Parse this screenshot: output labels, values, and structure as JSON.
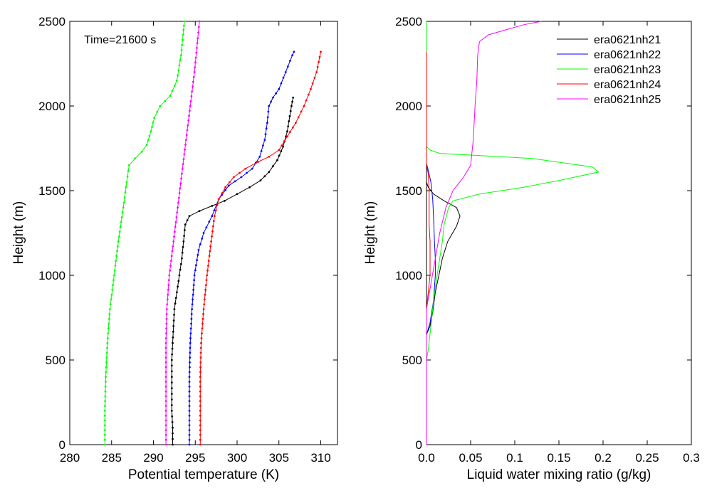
{
  "chart_data": [
    {
      "type": "line",
      "xlabel": "Potential temperature (K)",
      "ylabel": "Height (m)",
      "xlim": [
        280,
        312
      ],
      "ylim": [
        0,
        2500
      ],
      "xticks": [
        "280",
        "285",
        "290",
        "295",
        "300",
        "305",
        "310"
      ],
      "yticks": [
        "0",
        "500",
        "1000",
        "1500",
        "2000",
        "2500"
      ],
      "annotation": "Time=21600 s",
      "markers": true,
      "grid": false,
      "series": [
        {
          "color": "#000000",
          "points": [
            [
              292.3,
              0
            ],
            [
              292.3,
              100
            ],
            [
              292.2,
              200
            ],
            [
              292.2,
              300
            ],
            [
              292.2,
              400
            ],
            [
              292.2,
              500
            ],
            [
              292.3,
              600
            ],
            [
              292.4,
              700
            ],
            [
              292.5,
              800
            ],
            [
              292.8,
              900
            ],
            [
              293.1,
              1000
            ],
            [
              293.4,
              1100
            ],
            [
              293.6,
              1200
            ],
            [
              293.8,
              1300
            ],
            [
              294.3,
              1350
            ],
            [
              295.5,
              1380
            ],
            [
              297.0,
              1410
            ],
            [
              298.5,
              1440
            ],
            [
              300.0,
              1480
            ],
            [
              301.5,
              1520
            ],
            [
              302.8,
              1560
            ],
            [
              303.8,
              1610
            ],
            [
              304.8,
              1680
            ],
            [
              305.5,
              1760
            ],
            [
              306.0,
              1850
            ],
            [
              306.3,
              1940
            ],
            [
              306.5,
              2000
            ],
            [
              306.7,
              2050
            ]
          ]
        },
        {
          "color": "#0000ff",
          "points": [
            [
              294.3,
              0
            ],
            [
              294.3,
              200
            ],
            [
              294.3,
              400
            ],
            [
              294.4,
              600
            ],
            [
              294.6,
              800
            ],
            [
              294.9,
              1000
            ],
            [
              295.4,
              1150
            ],
            [
              296.0,
              1250
            ],
            [
              297.0,
              1350
            ],
            [
              297.8,
              1450
            ],
            [
              299.0,
              1530
            ],
            [
              300.5,
              1580
            ],
            [
              301.8,
              1630
            ],
            [
              302.7,
              1700
            ],
            [
              303.3,
              1800
            ],
            [
              303.6,
              1900
            ],
            [
              303.8,
              2000
            ],
            [
              304.3,
              2050
            ],
            [
              305.0,
              2100
            ],
            [
              305.8,
              2200
            ],
            [
              306.6,
              2300
            ],
            [
              306.8,
              2320
            ]
          ]
        },
        {
          "color": "#00ff00",
          "points": [
            [
              284.2,
              0
            ],
            [
              284.2,
              200
            ],
            [
              284.3,
              400
            ],
            [
              284.5,
              600
            ],
            [
              284.8,
              800
            ],
            [
              285.3,
              1000
            ],
            [
              285.8,
              1200
            ],
            [
              286.4,
              1400
            ],
            [
              286.8,
              1550
            ],
            [
              287.1,
              1650
            ],
            [
              287.8,
              1690
            ],
            [
              288.6,
              1730
            ],
            [
              289.2,
              1770
            ],
            [
              289.7,
              1850
            ],
            [
              290.1,
              1930
            ],
            [
              290.8,
              2000
            ],
            [
              292.0,
              2060
            ],
            [
              292.8,
              2150
            ],
            [
              293.3,
              2300
            ],
            [
              293.6,
              2450
            ],
            [
              293.7,
              2500
            ]
          ]
        },
        {
          "color": "#ff0000",
          "points": [
            [
              295.6,
              0
            ],
            [
              295.6,
              200
            ],
            [
              295.6,
              400
            ],
            [
              295.7,
              600
            ],
            [
              296.0,
              800
            ],
            [
              296.4,
              1000
            ],
            [
              296.9,
              1200
            ],
            [
              297.3,
              1350
            ],
            [
              297.8,
              1450
            ],
            [
              298.6,
              1520
            ],
            [
              299.6,
              1580
            ],
            [
              301.0,
              1630
            ],
            [
              302.5,
              1670
            ],
            [
              303.8,
              1700
            ],
            [
              305.0,
              1740
            ],
            [
              306.0,
              1820
            ],
            [
              307.0,
              1900
            ],
            [
              308.0,
              2000
            ],
            [
              308.8,
              2100
            ],
            [
              309.5,
              2200
            ],
            [
              310.0,
              2320
            ]
          ]
        },
        {
          "color": "#ff00ff",
          "points": [
            [
              291.5,
              0
            ],
            [
              291.5,
              200
            ],
            [
              291.5,
              400
            ],
            [
              291.5,
              600
            ],
            [
              291.6,
              800
            ],
            [
              291.9,
              1000
            ],
            [
              292.4,
              1200
            ],
            [
              292.9,
              1400
            ],
            [
              293.4,
              1600
            ],
            [
              293.9,
              1800
            ],
            [
              294.4,
              2000
            ],
            [
              294.9,
              2200
            ],
            [
              295.3,
              2400
            ],
            [
              295.5,
              2500
            ]
          ]
        }
      ]
    },
    {
      "type": "line",
      "xlabel": "Liquid water mixing ratio (g/kg)",
      "ylabel": "Height (m)",
      "xlim": [
        0,
        0.3
      ],
      "ylim": [
        0,
        2500
      ],
      "xticks": [
        "0.0",
        "0.05",
        "0.1",
        "0.15",
        "0.2",
        "0.25",
        "0.3"
      ],
      "yticks": [
        "0",
        "500",
        "1000",
        "1500",
        "2000",
        "2500"
      ],
      "legend_position": "top-right",
      "grid": false,
      "series": [
        {
          "name": "era0621nh21",
          "color": "#000000",
          "points": [
            [
              0,
              650
            ],
            [
              0.004,
              700
            ],
            [
              0.007,
              780
            ],
            [
              0.01,
              900
            ],
            [
              0.014,
              1000
            ],
            [
              0.018,
              1100
            ],
            [
              0.024,
              1200
            ],
            [
              0.034,
              1290
            ],
            [
              0.038,
              1350
            ],
            [
              0.034,
              1400
            ],
            [
              0.02,
              1440
            ],
            [
              0.008,
              1480
            ],
            [
              0.002,
              1520
            ],
            [
              0,
              1550
            ]
          ]
        },
        {
          "name": "era0621nh22",
          "color": "#0000ff",
          "points": [
            [
              0,
              650
            ],
            [
              0.004,
              720
            ],
            [
              0.008,
              850
            ],
            [
              0.01,
              1000
            ],
            [
              0.01,
              1100
            ],
            [
              0.009,
              1200
            ],
            [
              0.008,
              1350
            ],
            [
              0.007,
              1450
            ],
            [
              0.005,
              1550
            ],
            [
              0.002,
              1620
            ],
            [
              0,
              1660
            ]
          ]
        },
        {
          "name": "era0621nh23",
          "color": "#00ff00",
          "points": [
            [
              0,
              500
            ],
            [
              0.002,
              560
            ],
            [
              0.005,
              700
            ],
            [
              0.008,
              850
            ],
            [
              0.012,
              1000
            ],
            [
              0.015,
              1100
            ],
            [
              0.018,
              1200
            ],
            [
              0.02,
              1300
            ],
            [
              0.025,
              1400
            ],
            [
              0.03,
              1440
            ],
            [
              0.06,
              1480
            ],
            [
              0.11,
              1520
            ],
            [
              0.15,
              1560
            ],
            [
              0.195,
              1610
            ],
            [
              0.188,
              1640
            ],
            [
              0.12,
              1690
            ],
            [
              0.05,
              1710
            ],
            [
              0.015,
              1720
            ],
            [
              0.004,
              1740
            ],
            [
              0,
              1760
            ],
            [
              0,
              1880
            ],
            [
              0,
              2500
            ]
          ]
        },
        {
          "name": "era0621nh24",
          "color": "#ff0000",
          "points": [
            [
              0,
              800
            ],
            [
              0.002,
              900
            ],
            [
              0.004,
              1000
            ],
            [
              0.004,
              1100
            ],
            [
              0.004,
              1200
            ],
            [
              0.003,
              1300
            ],
            [
              0.003,
              1400
            ],
            [
              0.003,
              1500
            ],
            [
              0.002,
              1600
            ],
            [
              0,
              1650
            ],
            [
              0,
              2320
            ]
          ]
        },
        {
          "name": "era0621nh25",
          "color": "#ff00ff",
          "points": [
            [
              0,
              0
            ],
            [
              0,
              800
            ],
            [
              0.005,
              950
            ],
            [
              0.01,
              1100
            ],
            [
              0.015,
              1250
            ],
            [
              0.022,
              1400
            ],
            [
              0.03,
              1500
            ],
            [
              0.042,
              1580
            ],
            [
              0.05,
              1650
            ],
            [
              0.053,
              1800
            ],
            [
              0.055,
              2000
            ],
            [
              0.057,
              2150
            ],
            [
              0.058,
              2300
            ],
            [
              0.06,
              2380
            ],
            [
              0.07,
              2420
            ],
            [
              0.09,
              2450
            ],
            [
              0.11,
              2480
            ],
            [
              0.13,
              2500
            ]
          ]
        }
      ]
    }
  ]
}
